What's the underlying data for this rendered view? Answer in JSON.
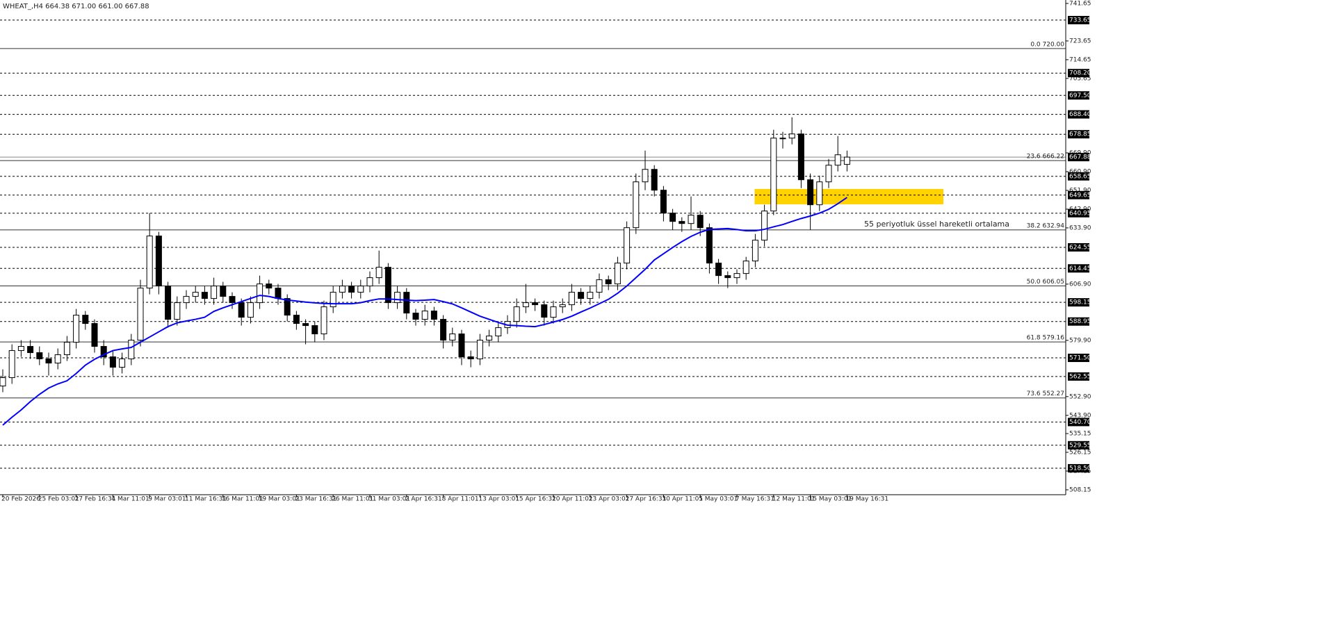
{
  "chart_data": {
    "type": "candlestick",
    "title": "WHEAT_,H4  664.38 671.00 661.00 667.88",
    "x": [
      "20 Feb 2026",
      null,
      null,
      null,
      "25 Feb 03:01",
      null,
      null,
      null,
      "27 Feb 16:31",
      null,
      null,
      null,
      "4 Mar 11:01",
      null,
      null,
      null,
      "9 Mar 03:01",
      null,
      null,
      null,
      "11 Mar 16:31",
      null,
      null,
      null,
      "16 Mar 11:01",
      null,
      null,
      null,
      "19 Mar 03:01",
      null,
      null,
      null,
      "23 Mar 16:31",
      null,
      null,
      null,
      "26 Mar 11:01",
      null,
      null,
      null,
      "31 Mar 03:01",
      null,
      null,
      null,
      "2 Apr 16:31",
      null,
      null,
      null,
      "8 Apr 11:01",
      null,
      null,
      null,
      "13 Apr 03:01",
      null,
      null,
      null,
      "15 Apr 16:31",
      null,
      null,
      null,
      "20 Apr 11:01",
      null,
      null,
      null,
      "23 Apr 03:01",
      null,
      null,
      null,
      "27 Apr 16:31",
      null,
      null,
      null,
      "30 Apr 11:01",
      null,
      null,
      null,
      "5 May 03:01",
      null,
      null,
      null,
      "7 May 16:31",
      null,
      null,
      null,
      "12 May 11:01",
      null,
      null,
      null,
      "15 May 03:01",
      null,
      null,
      null,
      "19 May 16:31"
    ],
    "open": [
      558,
      562,
      575,
      577,
      574,
      571,
      569,
      573,
      579,
      592,
      588,
      577,
      572,
      567,
      571,
      580,
      605,
      630,
      606,
      590,
      598,
      601,
      603,
      600,
      606,
      601,
      598,
      591,
      598,
      607,
      605,
      600,
      592,
      588,
      587,
      583,
      596,
      603,
      606,
      603,
      606,
      610,
      615,
      598,
      603,
      593,
      590,
      594,
      590,
      580,
      583,
      572,
      571,
      580,
      582,
      586,
      589,
      596,
      598,
      597,
      591,
      596,
      597,
      603,
      600,
      603,
      609,
      607,
      617,
      634,
      656,
      662,
      652,
      641,
      637,
      636,
      640,
      634,
      617,
      611,
      610,
      612,
      618,
      628,
      642,
      677,
      677,
      679,
      657,
      645,
      656,
      664,
      664.38
    ],
    "high": [
      566,
      578,
      580,
      580,
      577,
      574,
      576,
      582,
      595,
      594,
      590,
      580,
      575,
      574,
      583,
      609,
      641,
      632,
      608,
      601,
      604,
      606,
      606,
      610,
      608,
      603,
      600,
      601,
      611,
      609,
      607,
      602,
      594,
      590,
      589,
      599,
      606,
      609,
      608,
      609,
      613,
      623,
      617,
      606,
      605,
      595,
      597,
      596,
      592,
      586,
      585,
      575,
      583,
      585,
      589,
      592,
      600,
      607,
      600,
      599,
      599,
      600,
      607,
      605,
      606,
      612,
      611,
      620,
      637,
      660,
      671,
      664,
      654,
      643,
      639,
      649,
      642,
      636,
      619,
      613,
      614,
      620,
      631,
      645,
      681,
      680,
      687,
      681,
      660,
      659,
      667,
      678,
      671.0
    ],
    "low": [
      555,
      559,
      572,
      571,
      568,
      563,
      566,
      570,
      576,
      585,
      574,
      568,
      563,
      564,
      568,
      577,
      602,
      602,
      586,
      587,
      595,
      598,
      597,
      597,
      598,
      595,
      587,
      588,
      595,
      602,
      597,
      589,
      585,
      578,
      579,
      580,
      593,
      600,
      600,
      600,
      603,
      607,
      595,
      595,
      590,
      587,
      587,
      587,
      576,
      577,
      568,
      567,
      568,
      577,
      579,
      583,
      586,
      593,
      594,
      587,
      588,
      593,
      594,
      597,
      597,
      600,
      604,
      604,
      614,
      631,
      652,
      649,
      637,
      633,
      632,
      633,
      630,
      612,
      607,
      605,
      607,
      609,
      615,
      625,
      640,
      672,
      674,
      653,
      633,
      642,
      653,
      661,
      661.0
    ],
    "close": [
      562,
      575,
      577,
      574,
      571,
      569,
      573,
      579,
      592,
      588,
      577,
      572,
      567,
      571,
      580,
      605,
      630,
      606,
      590,
      598,
      601,
      603,
      600,
      606,
      601,
      598,
      591,
      598,
      607,
      605,
      600,
      592,
      588,
      587,
      583,
      596,
      603,
      606,
      603,
      606,
      610,
      615,
      598,
      603,
      593,
      590,
      594,
      590,
      580,
      583,
      572,
      571,
      580,
      582,
      586,
      589,
      596,
      598,
      597,
      591,
      596,
      597,
      603,
      600,
      603,
      609,
      607,
      617,
      634,
      656,
      662,
      652,
      641,
      637,
      636,
      640,
      634,
      617,
      611,
      610,
      612,
      618,
      628,
      642,
      677,
      677,
      679,
      657,
      645,
      656,
      664,
      669,
      667.88
    ],
    "up_color": "#ffffff",
    "down_color": "#000000",
    "ema": {
      "color": "#0000ff",
      "values": [
        539.2,
        543,
        546.5,
        550.5,
        554,
        557,
        559,
        560.5,
        564,
        568,
        570.8,
        573,
        575,
        575.8,
        576.5,
        579,
        581.5,
        584,
        586.5,
        588.3,
        589.2,
        590,
        591,
        593.8,
        595.5,
        597,
        598.5,
        600,
        601.5,
        601,
        600,
        599.3,
        598.8,
        598.3,
        597.9,
        597.6,
        597.5,
        597.5,
        597.5,
        598,
        599,
        599.8,
        599.8,
        599.5,
        599.2,
        599,
        599.2,
        599.5,
        598.5,
        597.4,
        595.5,
        593.5,
        591.5,
        590,
        588.5,
        587.2,
        587,
        586.7,
        586.5,
        587.5,
        588.7,
        589.9,
        591.5,
        593.5,
        595.4,
        597.5,
        599.6,
        602.5,
        606,
        610,
        614,
        618.5,
        621.5,
        624.5,
        627.3,
        629.8,
        631.8,
        633.2,
        633.4,
        633.6,
        633.1,
        632.5,
        632.5,
        633.2,
        634.4,
        635.5,
        637,
        638.4,
        639.6,
        641,
        642.8,
        645.5,
        648.5
      ]
    },
    "ylim": [
      505.8,
      743.3
    ],
    "yticks": [
      741.65,
      723.65,
      714.65,
      705.65,
      {
        "value": 669.9,
        "label": "669.90"
      },
      {
        "value": 660.9,
        "label": "660.90"
      },
      {
        "value": 651.9,
        "label": "651.90"
      },
      {
        "value": 642.9,
        "label": "642.90"
      },
      {
        "value": 633.9,
        "label": "633.90"
      },
      {
        "value": 606.9,
        "label": "606.90"
      },
      {
        "value": 579.9,
        "label": "579.90"
      },
      {
        "value": 552.9,
        "label": "552.90"
      },
      {
        "value": 543.9,
        "label": "543.90"
      },
      535.15,
      526.15,
      517.15,
      508.15
    ],
    "levels": [
      733.65,
      {
        "value": 708.2,
        "label": "708.20"
      },
      {
        "value": 697.5,
        "label": "697.50"
      },
      {
        "value": 688.4,
        "label": "688.40"
      },
      678.85,
      658.65,
      649.65,
      640.95,
      624.55,
      614.45,
      598.15,
      588.95,
      {
        "value": 571.5,
        "label": "571.50"
      },
      562.55,
      {
        "value": 540.7,
        "label": "540.70"
      },
      529.55,
      {
        "value": 518.5,
        "label": "518.50"
      }
    ],
    "fib": [
      {
        "label": "0.0 720.00",
        "value": 720
      },
      {
        "label": "23.6 666.22",
        "value": 666.22
      },
      {
        "label": "38.2 632.94",
        "value": 632.94
      },
      {
        "label": "50.0 606.05",
        "value": 606.05
      },
      {
        "label": "61.8 579.16",
        "value": 579.16
      },
      {
        "label": "73.6 552.27",
        "value": 552.27
      }
    ],
    "zone": {
      "from": 645.2,
      "to": 652.6,
      "color": "#ffd200"
    },
    "annotation": {
      "text": "55 periyotluk üssel hareketli ortalama",
      "color": "#2020d0"
    }
  }
}
